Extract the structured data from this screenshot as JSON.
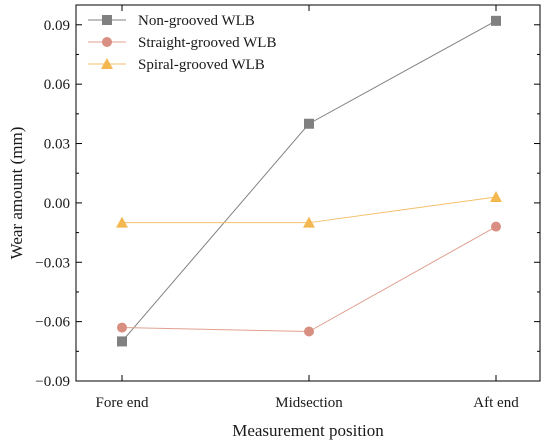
{
  "chart_data": {
    "type": "line",
    "categories": [
      "Fore end",
      "Midsection",
      "Aft end"
    ],
    "series": [
      {
        "name": "Non-grooved WLB",
        "values": [
          -0.07,
          0.04,
          0.092
        ],
        "color": "#808080",
        "marker": "square"
      },
      {
        "name": "Straight-grooved WLB",
        "values": [
          -0.063,
          -0.065,
          -0.012
        ],
        "color": "#e0a090",
        "marker": "circle"
      },
      {
        "name": "Spiral-grooved WLB",
        "values": [
          -0.01,
          -0.01,
          0.003
        ],
        "color": "#f4c06a",
        "marker": "triangle"
      }
    ],
    "xlabel": "Measurement position",
    "ylabel": "Wear amount (mm)",
    "ylim": [
      -0.09,
      0.1
    ],
    "yticks": [
      -0.09,
      -0.06,
      -0.03,
      0.0,
      0.03,
      0.06,
      0.09
    ],
    "ytick_labels": [
      "−0.09",
      "−0.06",
      "−0.03",
      "0.00",
      "0.03",
      "0.06",
      "0.09"
    ],
    "grid": false,
    "legend_position": "top-left",
    "marker_colors": {
      "Non-grooved WLB": "#808080",
      "Straight-grooved WLB": "#d88e80",
      "Spiral-grooved WLB": "#f4b850"
    }
  }
}
